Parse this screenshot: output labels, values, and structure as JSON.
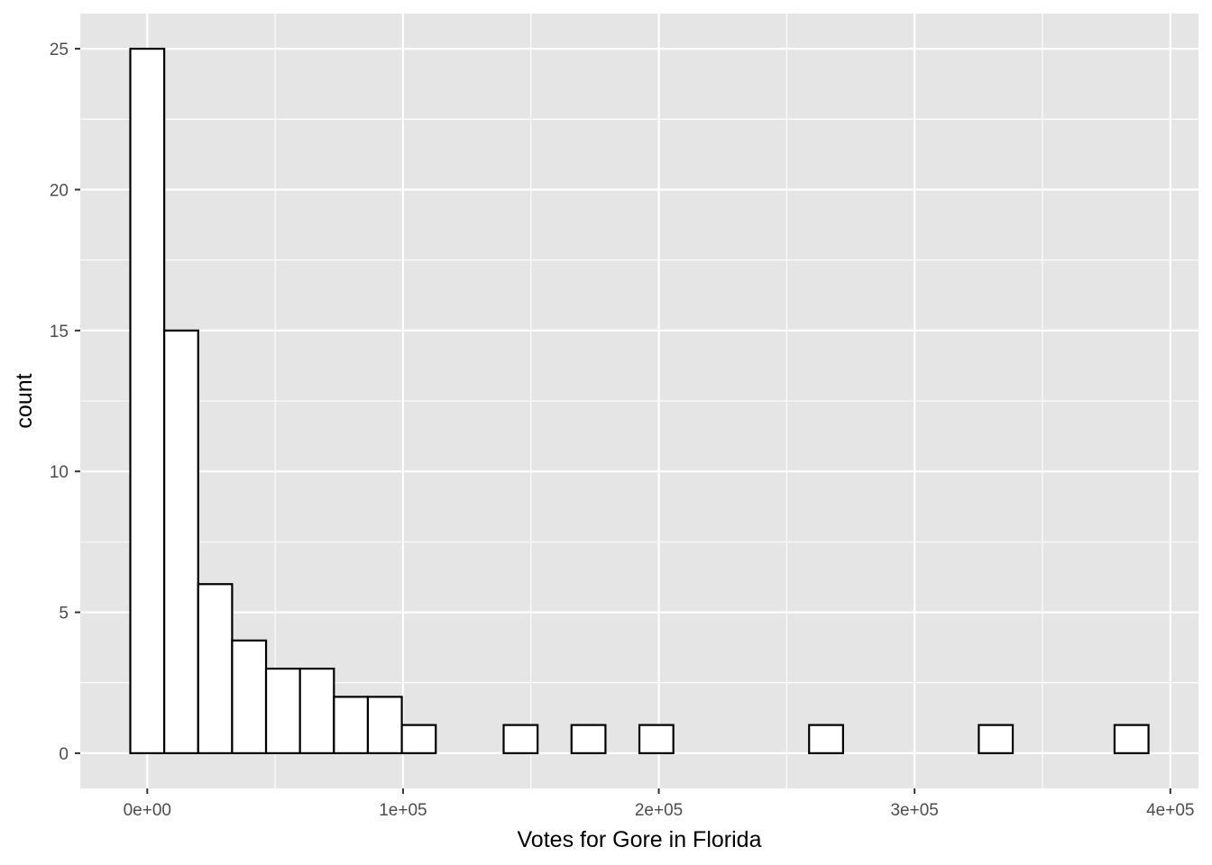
{
  "chart_data": {
    "type": "bar",
    "xlabel": "Votes for Gore in Florida",
    "ylabel": "count",
    "bin_width": 13270,
    "bins": [
      {
        "x_start": -6635,
        "x_end": 6635,
        "count": 25
      },
      {
        "x_start": 6635,
        "x_end": 19905,
        "count": 15
      },
      {
        "x_start": 19905,
        "x_end": 33175,
        "count": 6
      },
      {
        "x_start": 33175,
        "x_end": 46445,
        "count": 4
      },
      {
        "x_start": 46445,
        "x_end": 59715,
        "count": 3
      },
      {
        "x_start": 59715,
        "x_end": 72985,
        "count": 3
      },
      {
        "x_start": 72985,
        "x_end": 86255,
        "count": 2
      },
      {
        "x_start": 86255,
        "x_end": 99525,
        "count": 2
      },
      {
        "x_start": 99525,
        "x_end": 112795,
        "count": 1
      },
      {
        "x_start": 112795,
        "x_end": 126065,
        "count": 0
      },
      {
        "x_start": 126065,
        "x_end": 139335,
        "count": 0
      },
      {
        "x_start": 139335,
        "x_end": 152605,
        "count": 1
      },
      {
        "x_start": 152605,
        "x_end": 165875,
        "count": 0
      },
      {
        "x_start": 165875,
        "x_end": 179145,
        "count": 1
      },
      {
        "x_start": 179145,
        "x_end": 192415,
        "count": 0
      },
      {
        "x_start": 192415,
        "x_end": 205685,
        "count": 1
      },
      {
        "x_start": 205685,
        "x_end": 218955,
        "count": 0
      },
      {
        "x_start": 218955,
        "x_end": 232225,
        "count": 0
      },
      {
        "x_start": 232225,
        "x_end": 245495,
        "count": 0
      },
      {
        "x_start": 245495,
        "x_end": 258765,
        "count": 0
      },
      {
        "x_start": 258765,
        "x_end": 272035,
        "count": 1
      },
      {
        "x_start": 272035,
        "x_end": 285305,
        "count": 0
      },
      {
        "x_start": 285305,
        "x_end": 298575,
        "count": 0
      },
      {
        "x_start": 298575,
        "x_end": 311845,
        "count": 0
      },
      {
        "x_start": 311845,
        "x_end": 325115,
        "count": 0
      },
      {
        "x_start": 325115,
        "x_end": 338385,
        "count": 1
      },
      {
        "x_start": 338385,
        "x_end": 351655,
        "count": 0
      },
      {
        "x_start": 351655,
        "x_end": 364925,
        "count": 0
      },
      {
        "x_start": 364925,
        "x_end": 378195,
        "count": 0
      },
      {
        "x_start": 378195,
        "x_end": 391465,
        "count": 1
      }
    ],
    "xlim": [
      -26200,
      411000
    ],
    "ylim": [
      -1.25,
      26.25
    ],
    "x_ticks": [
      {
        "value": 0,
        "label": "0e+00"
      },
      {
        "value": 100000,
        "label": "1e+05"
      },
      {
        "value": 200000,
        "label": "2e+05"
      },
      {
        "value": 300000,
        "label": "3e+05"
      },
      {
        "value": 400000,
        "label": "4e+05"
      }
    ],
    "y_ticks": [
      {
        "value": 0,
        "label": "0"
      },
      {
        "value": 5,
        "label": "5"
      },
      {
        "value": 10,
        "label": "10"
      },
      {
        "value": 15,
        "label": "15"
      },
      {
        "value": 20,
        "label": "20"
      },
      {
        "value": 25,
        "label": "25"
      }
    ],
    "grid": true,
    "legend": "none",
    "colors": {
      "panel_background": "#e5e5e5",
      "grid_line": "#ffffff",
      "bar_fill": "#ffffff",
      "bar_outline": "#000000",
      "tick_label": "#4d4d4d",
      "tick_mark": "#333333",
      "axis_title": "#000000"
    }
  }
}
